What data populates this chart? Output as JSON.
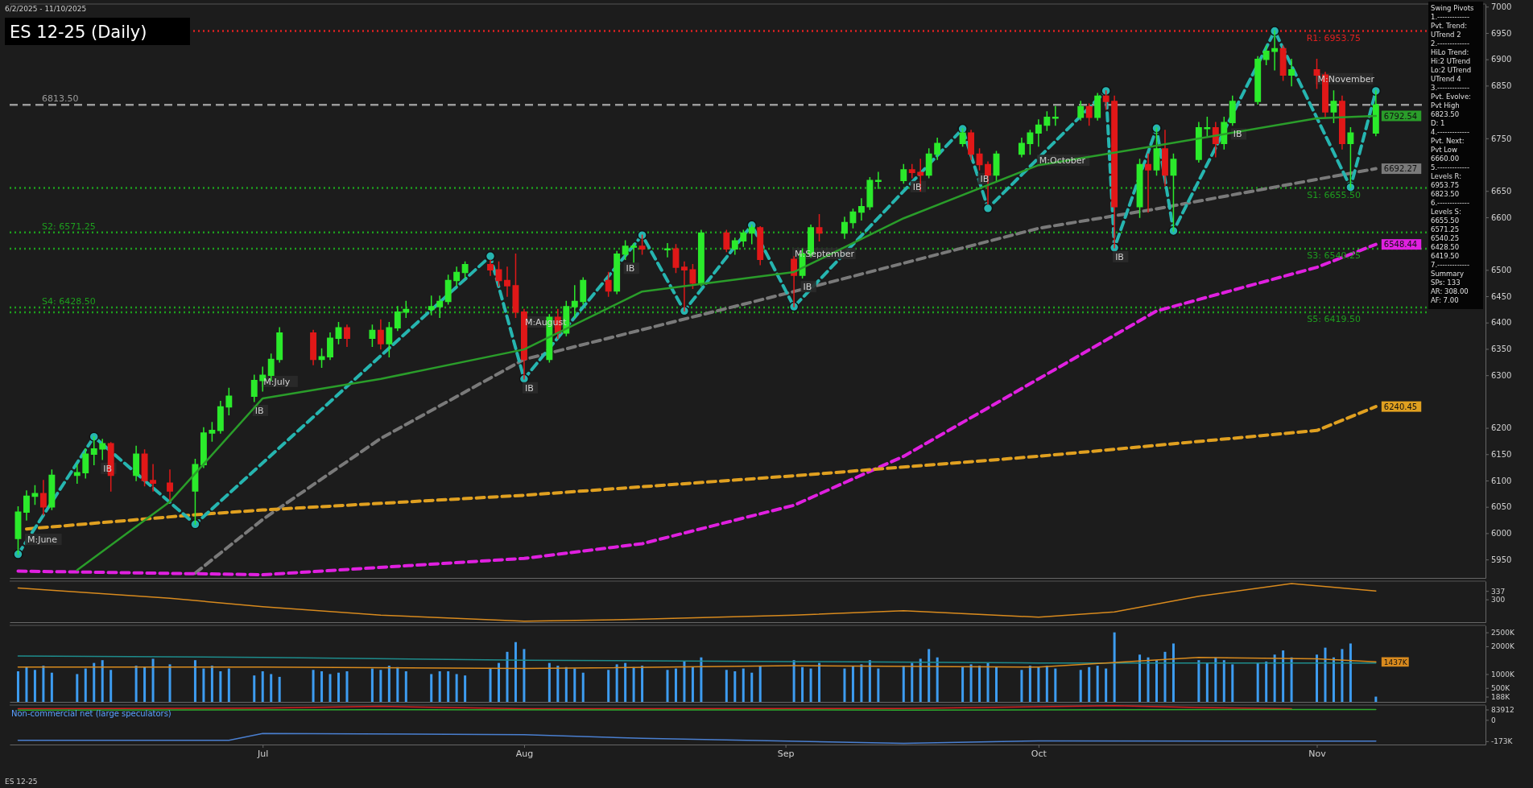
{
  "chart_data": [
    {
      "type": "candlestick",
      "title": "ES 12-25 (Daily)",
      "x": [
        "2025-06-02",
        "2025-06-03",
        "2025-06-04",
        "2025-06-05",
        "2025-06-06",
        "2025-06-09",
        "2025-06-10",
        "2025-06-11",
        "2025-06-12",
        "2025-06-13",
        "2025-06-16",
        "2025-06-17",
        "2025-06-18",
        "2025-06-20",
        "2025-06-23",
        "2025-06-24",
        "2025-06-25",
        "2025-06-26",
        "2025-06-27",
        "2025-06-30",
        "2025-07-01",
        "2025-07-02",
        "2025-07-03",
        "2025-07-07",
        "2025-07-08",
        "2025-07-09",
        "2025-07-10",
        "2025-07-11",
        "2025-07-14",
        "2025-07-15",
        "2025-07-16",
        "2025-07-17",
        "2025-07-18",
        "2025-07-21",
        "2025-07-22",
        "2025-07-23",
        "2025-07-24",
        "2025-07-25",
        "2025-07-28",
        "2025-07-29",
        "2025-07-30",
        "2025-07-31",
        "2025-08-01",
        "2025-08-04",
        "2025-08-05",
        "2025-08-06",
        "2025-08-07",
        "2025-08-08",
        "2025-08-11",
        "2025-08-12",
        "2025-08-13",
        "2025-08-14",
        "2025-08-15",
        "2025-08-18",
        "2025-08-19",
        "2025-08-20",
        "2025-08-21",
        "2025-08-22",
        "2025-08-25",
        "2025-08-26",
        "2025-08-27",
        "2025-08-28",
        "2025-08-29",
        "2025-09-02",
        "2025-09-03",
        "2025-09-04",
        "2025-09-05",
        "2025-09-08",
        "2025-09-09",
        "2025-09-10",
        "2025-09-11",
        "2025-09-12",
        "2025-09-15",
        "2025-09-16",
        "2025-09-17",
        "2025-09-18",
        "2025-09-19",
        "2025-09-22",
        "2025-09-23",
        "2025-09-24",
        "2025-09-25",
        "2025-09-26",
        "2025-09-29",
        "2025-09-30",
        "2025-10-01",
        "2025-10-02",
        "2025-10-03",
        "2025-10-06",
        "2025-10-07",
        "2025-10-08",
        "2025-10-09",
        "2025-10-10",
        "2025-10-13",
        "2025-10-14",
        "2025-10-15",
        "2025-10-16",
        "2025-10-17",
        "2025-10-20",
        "2025-10-21",
        "2025-10-22",
        "2025-10-23",
        "2025-10-24",
        "2025-10-27",
        "2025-10-28",
        "2025-10-29",
        "2025-10-30",
        "2025-10-31",
        "2025-11-03",
        "2025-11-04",
        "2025-11-05",
        "2025-11-06",
        "2025-11-07",
        "2025-11-10"
      ],
      "ohlc": [
        [
          5990,
          6050,
          5960,
          6040
        ],
        [
          6040,
          6080,
          6025,
          6070
        ],
        [
          6070,
          6090,
          6055,
          6075
        ],
        [
          6075,
          6100,
          6035,
          6050
        ],
        [
          6050,
          6120,
          6045,
          6110
        ],
        [
          6110,
          6130,
          6095,
          6115
        ],
        [
          6115,
          6160,
          6105,
          6150
        ],
        [
          6150,
          6183,
          6130,
          6160
        ],
        [
          6160,
          6178,
          6140,
          6170
        ],
        [
          6170,
          6172,
          6080,
          6110
        ],
        [
          6110,
          6165,
          6100,
          6150
        ],
        [
          6150,
          6158,
          6090,
          6100
        ],
        [
          6100,
          6130,
          6080,
          6095
        ],
        [
          6095,
          6120,
          6060,
          6080
        ],
        [
          6080,
          6140,
          6017,
          6130
        ],
        [
          6130,
          6200,
          6125,
          6190
        ],
        [
          6190,
          6210,
          6175,
          6195
        ],
        [
          6195,
          6250,
          6190,
          6240
        ],
        [
          6240,
          6275,
          6225,
          6260
        ],
        [
          6260,
          6300,
          6250,
          6290
        ],
        [
          6290,
          6315,
          6270,
          6300
        ],
        [
          6300,
          6340,
          6290,
          6330
        ],
        [
          6330,
          6390,
          6325,
          6380
        ],
        [
          6380,
          6385,
          6320,
          6330
        ],
        [
          6330,
          6350,
          6315,
          6335
        ],
        [
          6335,
          6380,
          6330,
          6370
        ],
        [
          6370,
          6400,
          6360,
          6390
        ],
        [
          6390,
          6395,
          6355,
          6370
        ],
        [
          6370,
          6395,
          6355,
          6385
        ],
        [
          6385,
          6405,
          6350,
          6360
        ],
        [
          6360,
          6400,
          6335,
          6390
        ],
        [
          6390,
          6430,
          6385,
          6420
        ],
        [
          6420,
          6440,
          6410,
          6425
        ],
        [
          6425,
          6450,
          6415,
          6430
        ],
        [
          6430,
          6450,
          6410,
          6440
        ],
        [
          6440,
          6490,
          6435,
          6480
        ],
        [
          6480,
          6505,
          6470,
          6495
        ],
        [
          6495,
          6515,
          6485,
          6510
        ],
        [
          6510,
          6518,
          6490,
          6500
        ],
        [
          6500,
          6515,
          6470,
          6480
        ],
        [
          6480,
          6505,
          6450,
          6470
        ],
        [
          6470,
          6530,
          6410,
          6420
        ],
        [
          6420,
          6425,
          6293,
          6330
        ],
        [
          6330,
          6415,
          6325,
          6410
        ],
        [
          6410,
          6425,
          6370,
          6380
        ],
        [
          6380,
          6440,
          6375,
          6430
        ],
        [
          6430,
          6470,
          6410,
          6440
        ],
        [
          6440,
          6485,
          6435,
          6480
        ],
        [
          6480,
          6495,
          6450,
          6460
        ],
        [
          6460,
          6535,
          6455,
          6530
        ],
        [
          6530,
          6555,
          6520,
          6545
        ],
        [
          6545,
          6550,
          6515,
          6545
        ],
        [
          6545,
          6566,
          6530,
          6540
        ],
        [
          6540,
          6550,
          6525,
          6540
        ],
        [
          6540,
          6548,
          6495,
          6505
        ],
        [
          6505,
          6515,
          6422,
          6500
        ],
        [
          6500,
          6510,
          6465,
          6475
        ],
        [
          6475,
          6575,
          6470,
          6570
        ],
        [
          6570,
          6575,
          6535,
          6540
        ],
        [
          6540,
          6560,
          6530,
          6555
        ],
        [
          6555,
          6575,
          6545,
          6570
        ],
        [
          6570,
          6585,
          6550,
          6580
        ],
        [
          6580,
          6582,
          6510,
          6520
        ],
        [
          6520,
          6525,
          6430,
          6490
        ],
        [
          6490,
          6540,
          6485,
          6530
        ],
        [
          6530,
          6585,
          6525,
          6580
        ],
        [
          6580,
          6605,
          6555,
          6570
        ],
        [
          6570,
          6600,
          6560,
          6590
        ],
        [
          6590,
          6615,
          6580,
          6610
        ],
        [
          6610,
          6635,
          6595,
          6620
        ],
        [
          6620,
          6675,
          6615,
          6670
        ],
        [
          6670,
          6685,
          6655,
          6670
        ],
        [
          6670,
          6700,
          6665,
          6690
        ],
        [
          6690,
          6700,
          6675,
          6685
        ],
        [
          6685,
          6710,
          6650,
          6680
        ],
        [
          6680,
          6730,
          6675,
          6720
        ],
        [
          6720,
          6750,
          6710,
          6740
        ],
        [
          6740,
          6768,
          6735,
          6760
        ],
        [
          6760,
          6765,
          6710,
          6720
        ],
        [
          6720,
          6730,
          6690,
          6700
        ],
        [
          6700,
          6705,
          6625,
          6680
        ],
        [
          6680,
          6725,
          6670,
          6720
        ],
        [
          6720,
          6750,
          6715,
          6740
        ],
        [
          6740,
          6765,
          6720,
          6760
        ],
        [
          6760,
          6785,
          6735,
          6775
        ],
        [
          6775,
          6800,
          6765,
          6790
        ],
        [
          6790,
          6810,
          6775,
          6790
        ],
        [
          6790,
          6820,
          6785,
          6810
        ],
        [
          6810,
          6815,
          6775,
          6790
        ],
        [
          6790,
          6835,
          6785,
          6830
        ],
        [
          6830,
          6840,
          6805,
          6820
        ],
        [
          6820,
          6830,
          6542,
          6620
        ],
        [
          6620,
          6710,
          6600,
          6700
        ],
        [
          6700,
          6720,
          6610,
          6690
        ],
        [
          6690,
          6769,
          6680,
          6730
        ],
        [
          6730,
          6765,
          6660,
          6680
        ],
        [
          6680,
          6720,
          6574,
          6710
        ],
        [
          6710,
          6780,
          6705,
          6770
        ],
        [
          6770,
          6790,
          6755,
          6770
        ],
        [
          6770,
          6780,
          6715,
          6740
        ],
        [
          6740,
          6790,
          6730,
          6780
        ],
        [
          6780,
          6830,
          6775,
          6820
        ],
        [
          6820,
          6905,
          6815,
          6900
        ],
        [
          6900,
          6925,
          6890,
          6915
        ],
        [
          6915,
          6953.75,
          6880,
          6920
        ],
        [
          6920,
          6925,
          6860,
          6870
        ],
        [
          6870,
          6900,
          6850,
          6880
        ],
        [
          6880,
          6900,
          6845,
          6870
        ],
        [
          6870,
          6875,
          6790,
          6800
        ],
        [
          6800,
          6840,
          6780,
          6820
        ],
        [
          6820,
          6830,
          6730,
          6740
        ],
        [
          6740,
          6770,
          6657,
          6760
        ],
        [
          6760,
          6840,
          6755,
          6813.5
        ]
      ],
      "series": [
        {
          "type": "line",
          "color": "#2a9d2a",
          "line_style": "solid",
          "x": [
            "2025-06-09",
            "2025-06-20",
            "2025-07-01",
            "2025-07-15",
            "2025-08-01",
            "2025-08-15",
            "2025-09-02",
            "2025-09-15",
            "2025-10-01",
            "2025-10-15",
            "2025-11-03",
            "2025-11-10"
          ],
          "values": [
            5930,
            6060,
            6256,
            6293,
            6349,
            6459,
            6496,
            6598,
            6699,
            6736,
            6788,
            6792.54
          ],
          "value_labels": [
            null,
            null,
            null,
            null,
            null,
            null,
            null,
            null,
            null,
            null,
            null,
            "6792.54"
          ]
        },
        {
          "type": "line",
          "color": "#7a7a7a",
          "line_style": "dashed",
          "x": [
            "2025-06-23",
            "2025-07-01",
            "2025-07-15",
            "2025-08-01",
            "2025-09-02",
            "2025-10-01",
            "2025-10-15",
            "2025-11-03",
            "2025-11-10"
          ],
          "values": [
            5924,
            6026,
            6180,
            6330,
            6459,
            6579,
            6616,
            6672,
            6692.27
          ],
          "value_labels": [
            null,
            null,
            null,
            null,
            null,
            null,
            null,
            null,
            "6692.27"
          ]
        },
        {
          "type": "line",
          "color": "#e020e0",
          "line_style": "dashed",
          "x": [
            "2025-06-02",
            "2025-07-01",
            "2025-08-01",
            "2025-08-15",
            "2025-09-02",
            "2025-09-15",
            "2025-10-01",
            "2025-10-15",
            "2025-11-03",
            "2025-11-10"
          ],
          "values": [
            5928,
            5921,
            5952,
            5980,
            6053,
            6146,
            6293,
            6422,
            6505,
            6548.44
          ],
          "value_labels": [
            null,
            null,
            null,
            null,
            null,
            null,
            null,
            null,
            null,
            "6548.44"
          ]
        },
        {
          "type": "line",
          "color": "#e0a020",
          "line_style": "dashed",
          "x": [
            "2025-06-03",
            "2025-06-23",
            "2025-07-01",
            "2025-08-01",
            "2025-09-02",
            "2025-10-01",
            "2025-11-03",
            "2025-11-10"
          ],
          "values": [
            6008,
            6035,
            6044,
            6072,
            6109,
            6146,
            6195,
            6240.45
          ],
          "value_labels": [
            null,
            null,
            null,
            null,
            null,
            null,
            null,
            "6240.45"
          ]
        },
        {
          "type": "line",
          "color": "#26b5b0",
          "line_style": "dashed",
          "marker": "circle",
          "x": [
            "2025-06-02",
            "2025-06-11",
            "2025-06-23",
            "2025-07-28",
            "2025-08-01",
            "2025-08-15",
            "2025-08-20",
            "2025-08-28",
            "2025-09-02",
            "2025-09-22",
            "2025-09-25",
            "2025-10-09",
            "2025-10-10",
            "2025-10-15",
            "2025-10-17",
            "2025-10-29",
            "2025-11-07",
            "2025-11-10"
          ],
          "values": [
            5960,
            6183,
            6017,
            6526,
            6293,
            6566,
            6422,
            6585,
            6430,
            6768,
            6617,
            6840,
            6542,
            6769,
            6574,
            6953.75,
            6657,
            6840
          ]
        }
      ],
      "ref_lines": [
        {
          "axis": "y",
          "value": 6953.75,
          "label": "R1: 6953.75",
          "color": "#e02020",
          "line_style": "dotted"
        },
        {
          "axis": "y",
          "value": 6813.5,
          "label": "6813.50",
          "color": "#9a9a9a",
          "line_style": "dashed"
        },
        {
          "axis": "y",
          "value": 6655.5,
          "label": "S1: 6655.50",
          "color": "#1e9e1e",
          "line_style": "dotted"
        },
        {
          "axis": "y",
          "value": 6571.25,
          "label": "S2: 6571.25",
          "color": "#1e9e1e",
          "line_style": "dotted"
        },
        {
          "axis": "y",
          "value": 6540.25,
          "label": "S3: 6540.25",
          "color": "#1e9e1e",
          "line_style": "dotted"
        },
        {
          "axis": "y",
          "value": 6428.5,
          "label": "S4: 6428.50",
          "color": "#1e9e1e",
          "line_style": "dotted"
        },
        {
          "axis": "y",
          "value": 6419.5,
          "label": "S5: 6419.50",
          "color": "#1e9e1e",
          "line_style": "dotted"
        }
      ],
      "annotations": [
        "6/2/2025 - 11/10/2025",
        "ES 12-25",
        "Swing Pivots",
        "1.-------------",
        "Pvt. Trend:",
        "UTrend 2",
        "2.-------------",
        "HiLo Trend:",
        "Hi:2 UTrend",
        "Lo:2 UTrend",
        "UTrend 4",
        "3.-------------",
        "Pvt. Evolve:",
        "Pvt High",
        "6823.50",
        "D: 1",
        "4.-------------",
        "Pvt. Next:",
        "Pvt Low",
        "6660.00",
        "5.-------------",
        "Levels R:",
        "6953.75",
        "6823.50",
        "6.-------------",
        "Levels S:",
        "6655.50",
        "6571.25",
        "6540.25",
        "6428.50",
        "6419.50",
        "7.-------------",
        "Summary",
        "SPs: 133",
        "AR: 308.00",
        "AF: 7.00",
        {
          "text": "M:June",
          "x": "2025-06-03",
          "y": 6005
        },
        {
          "text": "M:July",
          "x": "2025-07-01",
          "y": 6305
        },
        {
          "text": "M:August",
          "x": "2025-08-01",
          "y": 6418
        },
        {
          "text": "M:September",
          "x": "2025-09-02",
          "y": 6548
        },
        {
          "text": "M:October",
          "x": "2025-10-01",
          "y": 6725
        },
        {
          "text": "M:November",
          "x": "2025-11-03",
          "y": 6880
        },
        {
          "text": "IB",
          "x": "2025-06-12",
          "y": 6140
        },
        {
          "text": "IB",
          "x": "2025-06-30",
          "y": 6250
        },
        {
          "text": "IB",
          "x": "2025-08-01",
          "y": 6293
        },
        {
          "text": "IB",
          "x": "2025-08-13",
          "y": 6520
        },
        {
          "text": "IB",
          "x": "2025-09-03",
          "y": 6485
        },
        {
          "text": "IB",
          "x": "2025-09-16",
          "y": 6675
        },
        {
          "text": "IB",
          "x": "2025-09-24",
          "y": 6690
        },
        {
          "text": "IB",
          "x": "2025-10-10",
          "y": 6542
        },
        {
          "text": "IB",
          "x": "2025-10-24",
          "y": 6775
        }
      ],
      "xlim": [
        "2025-06-01",
        "2025-11-23"
      ],
      "ylim": [
        5915,
        7005
      ],
      "yticks": [
        5950,
        6000,
        6050,
        6100,
        6150,
        6200,
        6300,
        6350,
        6400,
        6450,
        6500,
        6600,
        6650,
        6750,
        6850,
        6900,
        6950,
        7000
      ],
      "tick_labels": "y"
    },
    {
      "type": "line",
      "series": [
        {
          "color": "#d88a1e",
          "x": [
            "2025-06-02",
            "2025-06-20",
            "2025-07-01",
            "2025-07-15",
            "2025-08-01",
            "2025-08-15",
            "2025-09-02",
            "2025-09-15",
            "2025-10-01",
            "2025-10-10",
            "2025-10-20",
            "2025-10-31",
            "2025-11-10"
          ],
          "values": [
            350,
            305,
            268,
            231,
            204,
            213,
            231,
            250,
            222,
            245,
            314,
            369,
            337
          ]
        }
      ],
      "xlim": [
        "2025-06-01",
        "2025-11-23"
      ],
      "ylim": [
        200,
        380
      ],
      "yticks": [
        300,
        337
      ],
      "tick_labels": "y"
    },
    {
      "type": "bar",
      "color": "#3d9cf0",
      "x": [
        "2025-06-02",
        "2025-06-03",
        "2025-06-04",
        "2025-06-05",
        "2025-06-06",
        "2025-06-09",
        "2025-06-10",
        "2025-06-11",
        "2025-06-12",
        "2025-06-13",
        "2025-06-16",
        "2025-06-17",
        "2025-06-18",
        "2025-06-20",
        "2025-06-23",
        "2025-06-24",
        "2025-06-25",
        "2025-06-26",
        "2025-06-27",
        "2025-06-30",
        "2025-07-01",
        "2025-07-02",
        "2025-07-03",
        "2025-07-07",
        "2025-07-08",
        "2025-07-09",
        "2025-07-10",
        "2025-07-11",
        "2025-07-14",
        "2025-07-15",
        "2025-07-16",
        "2025-07-17",
        "2025-07-18",
        "2025-07-21",
        "2025-07-22",
        "2025-07-23",
        "2025-07-24",
        "2025-07-25",
        "2025-07-28",
        "2025-07-29",
        "2025-07-30",
        "2025-07-31",
        "2025-08-01",
        "2025-08-04",
        "2025-08-05",
        "2025-08-06",
        "2025-08-07",
        "2025-08-08",
        "2025-08-11",
        "2025-08-12",
        "2025-08-13",
        "2025-08-14",
        "2025-08-15",
        "2025-08-18",
        "2025-08-19",
        "2025-08-20",
        "2025-08-21",
        "2025-08-22",
        "2025-08-25",
        "2025-08-26",
        "2025-08-27",
        "2025-08-28",
        "2025-08-29",
        "2025-09-02",
        "2025-09-03",
        "2025-09-04",
        "2025-09-05",
        "2025-09-08",
        "2025-09-09",
        "2025-09-10",
        "2025-09-11",
        "2025-09-12",
        "2025-09-15",
        "2025-09-16",
        "2025-09-17",
        "2025-09-18",
        "2025-09-19",
        "2025-09-22",
        "2025-09-23",
        "2025-09-24",
        "2025-09-25",
        "2025-09-26",
        "2025-09-29",
        "2025-09-30",
        "2025-10-01",
        "2025-10-02",
        "2025-10-03",
        "2025-10-06",
        "2025-10-07",
        "2025-10-08",
        "2025-10-09",
        "2025-10-10",
        "2025-10-13",
        "2025-10-14",
        "2025-10-15",
        "2025-10-16",
        "2025-10-17",
        "2025-10-20",
        "2025-10-21",
        "2025-10-22",
        "2025-10-23",
        "2025-10-24",
        "2025-10-27",
        "2025-10-28",
        "2025-10-29",
        "2025-10-30",
        "2025-10-31",
        "2025-11-03",
        "2025-11-04",
        "2025-11-05",
        "2025-11-06",
        "2025-11-07",
        "2025-11-10"
      ],
      "values": [
        1100,
        1250,
        1150,
        1300,
        1050,
        1000,
        1200,
        1400,
        1500,
        1150,
        1300,
        1250,
        1550,
        1350,
        1500,
        1200,
        1300,
        1100,
        1200,
        950,
        1100,
        1000,
        900,
        1150,
        1100,
        1000,
        1050,
        1100,
        1200,
        1150,
        1300,
        1250,
        1100,
        1000,
        1100,
        1100,
        1000,
        950,
        1200,
        1400,
        1800,
        2150,
        1900,
        1400,
        1300,
        1250,
        1200,
        1050,
        1150,
        1350,
        1400,
        1250,
        1300,
        1150,
        1200,
        1450,
        1250,
        1600,
        1150,
        1100,
        1200,
        1050,
        1300,
        1500,
        1250,
        1200,
        1400,
        1200,
        1300,
        1350,
        1500,
        1200,
        1300,
        1400,
        1550,
        1900,
        1600,
        1250,
        1350,
        1300,
        1400,
        1250,
        1150,
        1300,
        1250,
        1300,
        1200,
        1150,
        1250,
        1300,
        1200,
        2500,
        1700,
        1600,
        1500,
        1800,
        2100,
        1500,
        1400,
        1600,
        1500,
        1350,
        1400,
        1450,
        1700,
        1850,
        1600,
        1700,
        1950,
        1600,
        1900,
        2100,
        188
      ],
      "value_labels": [
        null,
        null,
        null,
        null,
        null,
        null,
        null,
        null,
        null,
        null,
        null,
        null,
        null,
        null,
        null,
        null,
        null,
        null,
        null,
        null,
        null,
        null,
        null,
        null,
        null,
        null,
        null,
        null,
        null,
        null,
        null,
        null,
        null,
        null,
        null,
        null,
        null,
        null,
        null,
        null,
        null,
        null,
        null,
        null,
        null,
        null,
        null,
        null,
        null,
        null,
        null,
        null,
        null,
        null,
        null,
        null,
        null,
        null,
        null,
        null,
        null,
        null,
        null,
        null,
        null,
        null,
        null,
        null,
        null,
        null,
        null,
        null,
        null,
        null,
        null,
        null,
        null,
        null,
        null,
        null,
        null,
        null,
        null,
        null,
        null,
        null,
        null,
        null,
        null,
        null,
        null,
        null,
        null,
        null,
        null,
        null,
        null,
        null,
        null,
        null,
        null,
        null,
        null,
        null,
        null,
        null,
        null,
        null,
        null,
        null,
        null,
        null,
        null
      ],
      "series": [
        {
          "type": "line",
          "color": "#1e8c8c",
          "x": [
            "2025-06-02",
            "2025-07-01",
            "2025-08-01",
            "2025-09-02",
            "2025-10-01",
            "2025-11-10"
          ],
          "values": [
            1650,
            1600,
            1500,
            1450,
            1400,
            1400
          ]
        },
        {
          "type": "line",
          "color": "#d88a1e",
          "x": [
            "2025-06-02",
            "2025-07-01",
            "2025-08-01",
            "2025-09-02",
            "2025-10-01",
            "2025-10-20",
            "2025-11-03",
            "2025-11-10"
          ],
          "values": [
            1250,
            1250,
            1200,
            1300,
            1250,
            1600,
            1550,
            1437
          ],
          "value_labels": [
            null,
            null,
            null,
            null,
            null,
            null,
            null,
            "1437K"
          ]
        }
      ],
      "xlim": [
        "2025-06-01",
        "2025-11-23"
      ],
      "ylim": [
        0,
        2750
      ],
      "yticks": [
        {
          "value": 188,
          "label": "188K"
        },
        {
          "value": 500,
          "label": "500K"
        },
        {
          "value": 1000,
          "label": "1000K"
        },
        {
          "value": 2000,
          "label": "2000K"
        },
        {
          "value": 2500,
          "label": "2500K"
        }
      ],
      "tick_labels": "y"
    },
    {
      "type": "line",
      "annotations": [
        "Non-commercial net (large speculators)"
      ],
      "series": [
        {
          "color": "#d42020",
          "x": [
            "2025-06-02",
            "2025-07-01",
            "2025-07-15",
            "2025-08-01",
            "2025-09-15",
            "2025-10-10",
            "2025-10-20",
            "2025-10-31"
          ],
          "values": [
            90000,
            95000,
            110000,
            90000,
            92000,
            115000,
            100000,
            90000
          ]
        },
        {
          "color": "#2eaa2e",
          "x": [
            "2025-06-02",
            "2025-07-15",
            "2025-09-15",
            "2025-10-31",
            "2025-11-10"
          ],
          "values": [
            80000,
            82000,
            80000,
            84000,
            83912
          ]
        },
        {
          "color": "#4a7fd0",
          "x": [
            "2025-06-02",
            "2025-06-27",
            "2025-07-01",
            "2025-08-01",
            "2025-08-15",
            "2025-09-15",
            "2025-10-01",
            "2025-11-10"
          ],
          "values": [
            -165000,
            -165000,
            -110000,
            -120000,
            -150000,
            -190000,
            -170000,
            -173000
          ]
        }
      ],
      "xlim": [
        "2025-06-01",
        "2025-11-23"
      ],
      "ylim": [
        -200000,
        120000
      ],
      "yticks": [
        {
          "value": 83912,
          "label": "83912"
        },
        0,
        {
          "value": -173000,
          "label": "-173K"
        }
      ],
      "xticks": [
        {
          "value": "2025-07-01",
          "label": "Jul"
        },
        {
          "value": "2025-08-01",
          "label": "Aug"
        },
        {
          "value": "2025-09-01",
          "label": "Sep"
        },
        {
          "value": "2025-10-01",
          "label": "Oct"
        },
        {
          "value": "2025-11-03",
          "label": "Nov"
        }
      ]
    }
  ]
}
